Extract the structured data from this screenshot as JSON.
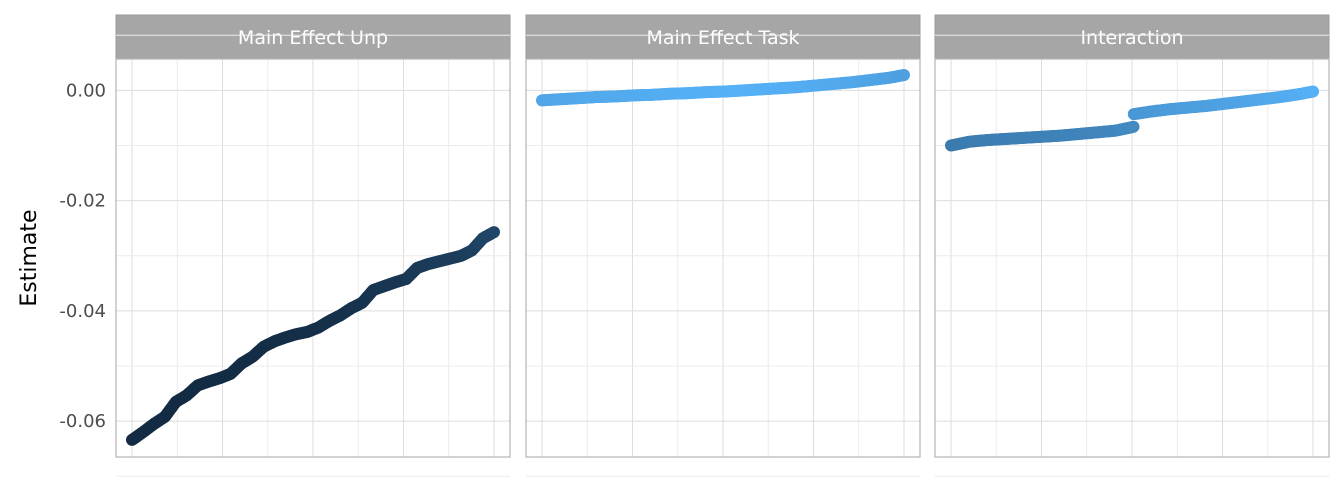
{
  "chart_data": {
    "type": "scatter",
    "ylabel": "Estimate",
    "xlabel": "",
    "ylim": [
      -0.0665,
      0.0057
    ],
    "y_ticks": [
      0.0,
      -0.02,
      -0.04,
      -0.06
    ],
    "y_tick_labels": [
      "0.00",
      "-0.02",
      "-0.04",
      "-0.06"
    ],
    "grid": true,
    "color_scale": {
      "low": "#132b43",
      "high": "#56b1f7"
    },
    "facets": [
      {
        "strip_label": "Main Effect Unp",
        "series": [
          {
            "x": [
              0,
              3,
              6,
              9,
              12,
              15,
              18,
              21,
              24,
              27,
              30,
              33,
              36,
              39,
              42,
              45,
              48,
              51,
              54,
              57,
              60,
              63,
              66,
              69,
              72,
              75,
              78,
              81,
              84,
              87,
              90,
              93,
              96,
              99
            ],
            "y": [
              -0.0634,
              -0.062,
              -0.0605,
              -0.0592,
              -0.0565,
              -0.0553,
              -0.0535,
              -0.0528,
              -0.0522,
              -0.0514,
              -0.0495,
              -0.0483,
              -0.0465,
              -0.0455,
              -0.0448,
              -0.0442,
              -0.0438,
              -0.043,
              -0.0418,
              -0.0408,
              -0.0395,
              -0.0385,
              -0.0362,
              -0.0355,
              -0.0348,
              -0.0342,
              -0.0322,
              -0.0315,
              -0.031,
              -0.0305,
              -0.03,
              -0.029,
              -0.0268,
              -0.0257
            ]
          }
        ]
      },
      {
        "strip_label": "Main Effect Task",
        "series": [
          {
            "x": [
              0,
              5,
              10,
              15,
              20,
              25,
              30,
              35,
              40,
              45,
              50,
              55,
              60,
              65,
              70,
              75,
              80,
              85,
              90,
              95,
              99
            ],
            "y": [
              -0.0018,
              -0.0016,
              -0.0014,
              -0.0012,
              -0.0011,
              -0.0009,
              -0.0008,
              -0.0006,
              -0.0005,
              -0.0003,
              -0.0002,
              0.0,
              0.0002,
              0.0004,
              0.0006,
              0.0009,
              0.0012,
              0.0015,
              0.0019,
              0.0023,
              0.0028
            ]
          }
        ]
      },
      {
        "strip_label": "Interaction",
        "series": [
          {
            "x": [
              0,
              5,
              10,
              15,
              20,
              25,
              30,
              35,
              40,
              45,
              49.9,
              50,
              55,
              60,
              65,
              70,
              75,
              80,
              85,
              90,
              95,
              99
            ],
            "y": [
              -0.01,
              -0.0093,
              -0.009,
              -0.0088,
              -0.0086,
              -0.0084,
              -0.0082,
              -0.0079,
              -0.0076,
              -0.0073,
              -0.0066,
              -0.0043,
              -0.0038,
              -0.0034,
              -0.0031,
              -0.0028,
              -0.0024,
              -0.002,
              -0.0016,
              -0.0012,
              -0.0007,
              -0.0002
            ]
          }
        ]
      }
    ]
  }
}
